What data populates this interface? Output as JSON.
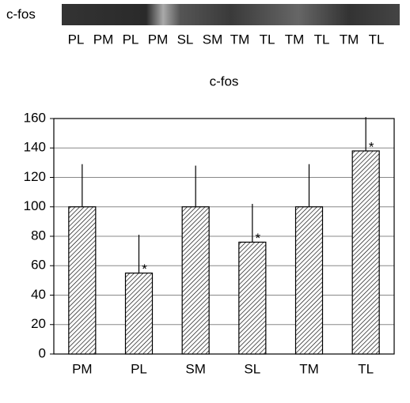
{
  "blot": {
    "label": "c-fos",
    "lanes": [
      "PL",
      "PM",
      "PL",
      "PM",
      "SL",
      "SM",
      "TM",
      "TL",
      "TM",
      "TL",
      "TM",
      "TL"
    ]
  },
  "chart_data": {
    "type": "bar",
    "title": "c-fos",
    "categories": [
      "PM",
      "PL",
      "SM",
      "SL",
      "TM",
      "TL"
    ],
    "values": [
      100,
      55,
      100,
      76,
      100,
      138
    ],
    "errors": [
      29,
      26,
      28,
      26,
      29,
      23
    ],
    "annotations": [
      {
        "category": "PL",
        "text": "*"
      },
      {
        "category": "SL",
        "text": "*"
      },
      {
        "category": "TL",
        "text": "*"
      }
    ],
    "ylim": [
      0,
      160
    ],
    "yticks": [
      0,
      20,
      40,
      60,
      80,
      100,
      120,
      140,
      160
    ],
    "grid": true
  }
}
